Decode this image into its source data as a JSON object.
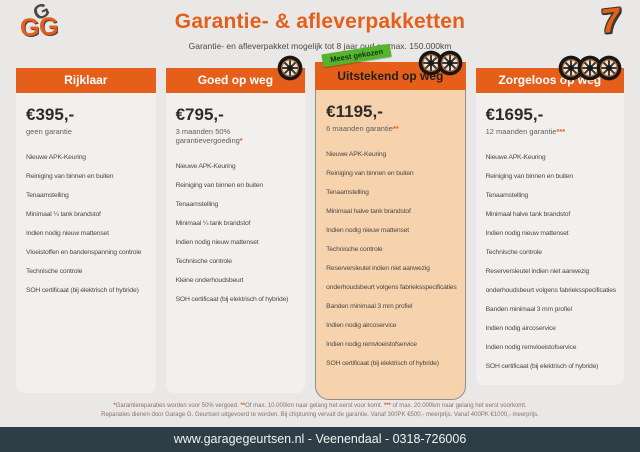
{
  "brand": {
    "logo_top": "G",
    "logo_left": "G",
    "logo_right": "G",
    "decoration": "7"
  },
  "header": {
    "title": "Garantie- & afleverpakketten",
    "subtitle": "Garantie- en afleverpakket mogelijk tot 8 jaar oud en max. 150.000km"
  },
  "packages": [
    {
      "name": "Rijklaar",
      "price": "€395,-",
      "note": "geen garantie",
      "marker": "",
      "wheels": 0,
      "badge": "",
      "items": [
        "Nieuwe APK-Keuring",
        "Reiniging van binnen en buiten",
        "Tenaamstelling",
        "Minimaal ¼ tank brandstof",
        "Indien nodig nieuw mattenset",
        "Vloeistoffen en bandenspanning controle",
        "Technische controle",
        "SOH certificaat (bij elektrisch of hybride)"
      ]
    },
    {
      "name": "Goed op weg",
      "price": "€795,-",
      "note": "3 maanden 50% garantievergoeding",
      "marker": "*",
      "wheels": 1,
      "badge": "",
      "items": [
        "Nieuwe APK-Keuring",
        "Reiniging van binnen en buiten",
        "Tenaamstelling",
        "Minimaal ¼ tank brandstof",
        "Indien nodig nieuw mattenset",
        "Technische controle",
        "Kleine onderhoudsbeurt",
        "SOH certificaat (bij elektrisch of hybride)"
      ]
    },
    {
      "name": "Uitstekend op weg",
      "price": "€1195,-",
      "note": "6 maanden garantie",
      "marker": "**",
      "wheels": 2,
      "badge": "Meest gekozen",
      "items": [
        "Nieuwe APK-Keuring",
        "Reiniging van binnen en buiten",
        "Tenaamstelling",
        "Minimaal halve tank brandstof",
        "Indien nodig nieuw mattenset",
        "Technische controle",
        "Reserversleutel indien niet aanwezig",
        "onderhoudsbeurt volgens fabrieksspecificaties",
        "Banden minimaal 3 mm profiel",
        "Indien nodig aircoservice",
        "Indien nodig remvloeistofservice",
        "SOH certificaat (bij elektrisch of hybride)"
      ]
    },
    {
      "name": "Zorgeloos op weg",
      "price": "€1695,-",
      "note": "12 maanden garantie",
      "marker": "***",
      "wheels": 3,
      "badge": "",
      "items": [
        "Nieuwe APK-Keuring",
        "Reiniging van binnen en buiten",
        "Tenaamstelling",
        "Minimaal halve tank brandstof",
        "Indien nodig nieuw mattenset",
        "Technische controle",
        "Reserversleutel indien niet aanwezig",
        "onderhoudsbeurt volgens fabrieksspecificaties",
        "Banden minimaal 3 mm profiel",
        "Indien nodig aircoservice",
        "Indien nodig remvloeistofservice",
        "SOH certificaat (bij elektrisch of hybride)"
      ]
    }
  ],
  "footnotes": {
    "line1_m1": "*",
    "line1_t1": "Garantiereparaties worden voor 50% vergoed. ",
    "line1_m2": "**",
    "line1_t2": "Of max. 10.000km naar gelang het eerst voor komt. ",
    "line1_m3": "***",
    "line1_t3": " of max. 20.000km naar gelang het eerst voorkomt.",
    "line2": "Reparaties dienen door Garage G. Geurtsen uitgevoerd te worden. Bij chiptuning vervalt de garantie. Vanaf 300PK €500,- meerprijs. Vanaf 400PK €1000,- meerprijs."
  },
  "footer": {
    "text": "www.garagegeurtsen.nl - Veenendaal - 0318-726006"
  },
  "colors": {
    "accent": "#e55f1a",
    "featured_bg": "#f6d2ad",
    "badge_green": "#55b42e",
    "footer_bg": "#2f3e46",
    "page_bg": "#e9e8e6"
  }
}
